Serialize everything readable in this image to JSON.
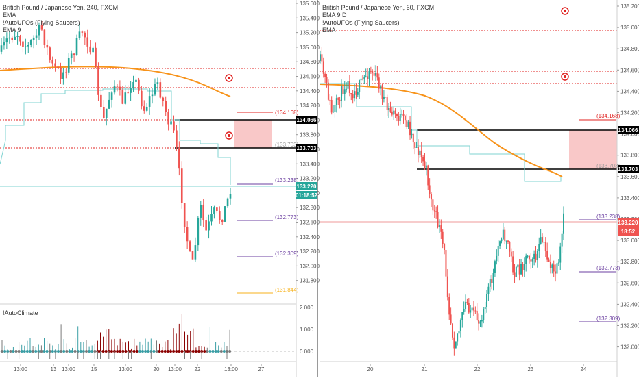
{
  "left_chart": {
    "legend": {
      "symbol": "British Pound / Japanese Yen, 240, FXCM",
      "ind1": "EMA",
      "ind2": "!AutoUFOs (Flying Saucers)",
      "ind3": "EMA 9"
    },
    "price_axis": [
      "135.600",
      "135.400",
      "135.200",
      "135.000",
      "134.800",
      "134.600",
      "134.400",
      "134.200",
      "134.000",
      "133.800",
      "133.600",
      "133.400",
      "133.200",
      "133.000",
      "132.800",
      "132.600",
      "132.400",
      "132.200",
      "132.000",
      "131.800"
    ],
    "time_axis": [
      "13:00",
      "13",
      "13:00",
      "15",
      "13:00",
      "20",
      "13:00",
      "22",
      "13:00",
      "27"
    ],
    "level_labels": {
      "l134168": "(134.168)",
      "l133703": "(133.703)",
      "l133238": "(133.238)",
      "l132773": "(132.773)",
      "l132309": "(132.309)",
      "l131844": "(131.844)"
    },
    "badges": {
      "b134066": "134.066",
      "b133703": "133.703",
      "b133220": "133.220",
      "countdown": "01:18:52"
    },
    "sub_pane": {
      "title": "!AutoClimate",
      "axis": [
        "2.000",
        "1.000",
        "0.000"
      ]
    }
  },
  "right_chart": {
    "legend": {
      "symbol": "British Pound / Japanese Yen, 60, FXCM",
      "ind1": "EMA 9 D",
      "ind2": "!AutoUFOs (Flying Saucers)",
      "ind3": "EMA"
    },
    "price_axis": [
      "135.200",
      "135.000",
      "134.800",
      "134.600",
      "134.400",
      "134.200",
      "134.000",
      "133.800",
      "133.600",
      "133.400",
      "133.200",
      "133.000",
      "132.800",
      "132.600",
      "132.400",
      "132.200",
      "132.000"
    ],
    "time_axis": [
      "20",
      "21",
      "22",
      "23",
      "24"
    ],
    "level_labels": {
      "l134168": "(134.168)",
      "l133703": "(133.703)",
      "l133238": "(133.238)",
      "l132773": "(132.773)",
      "l132309": "(132.309)"
    },
    "badges": {
      "b134066": "134.066",
      "b133703": "133.703",
      "b133220": "133.220",
      "countdown": "18:52"
    }
  },
  "colors": {
    "up": "#26a69a",
    "down": "#ef5350",
    "ema_long": "#f7931a",
    "ema_short": "#7fd3d1",
    "ufo_red": "#e0201f",
    "zone": "#f7b5b5",
    "purple": "#6b3fa0",
    "orange_level": "#f7b21b",
    "climate_dark_red": "#8b0000",
    "climate_teal": "#3a9ea5",
    "climate_gray": "#7a7a7a"
  }
}
